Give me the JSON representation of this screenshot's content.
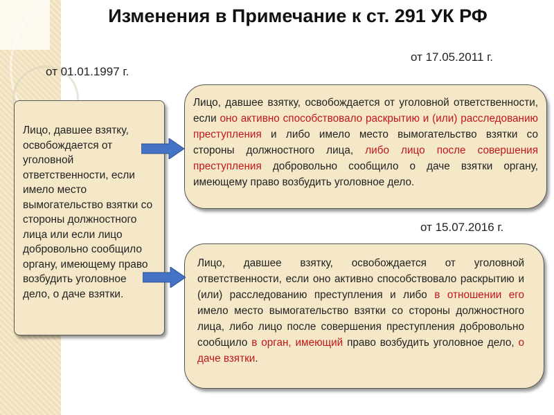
{
  "title": "Изменения в Примечание к ст. 291 УК РФ",
  "colors": {
    "highlight": "#c0171a",
    "box_fill": "#f4e8c9",
    "arrow": "#4472c4"
  },
  "version_1997": {
    "date": "от 01.01.1997 г.",
    "text": "Лицо, давшее взятку, освобождается от уголовной ответственности, если имело место вымогательство взятки со стороны должностного лица или если лицо добровольно сообщило органу, имеющему право возбудить уголовное дело, о даче взятки."
  },
  "version_2011": {
    "date": "от 17.05.2011 г.",
    "segments": [
      {
        "text": "Лицо, давшее взятку, освобождается от уголовной ответственности, если ",
        "highlight": false
      },
      {
        "text": "оно активно способствовало раскрытию и (или) расследованию преступления",
        "highlight": true
      },
      {
        "text": " и либо имело место вымогательство взятки со стороны должностного лица, ",
        "highlight": false
      },
      {
        "text": "либо лицо после совершения преступления",
        "highlight": true
      },
      {
        "text": " добровольно сообщило о даче взятки органу, имеющему право возбудить уголовное дело.",
        "highlight": false
      }
    ]
  },
  "version_2016": {
    "date": "от 15.07.2016 г.",
    "segments": [
      {
        "text": "Лицо, давшее взятку, освобождается от уголовной ответственности, если оно активно способствовало раскрытию и (или) расследованию преступления и либо ",
        "highlight": false
      },
      {
        "text": "в отношении его",
        "highlight": true
      },
      {
        "text": " имело место вымогательство взятки со стороны должностного лица, либо лицо после совершения преступления добровольно сообщило ",
        "highlight": false
      },
      {
        "text": "в орган, имеющий",
        "highlight": true
      },
      {
        "text": " право возбудить уголовное дело, ",
        "highlight": false
      },
      {
        "text": "о даче взятки",
        "highlight": true
      },
      {
        "text": ".",
        "highlight": false
      }
    ]
  }
}
